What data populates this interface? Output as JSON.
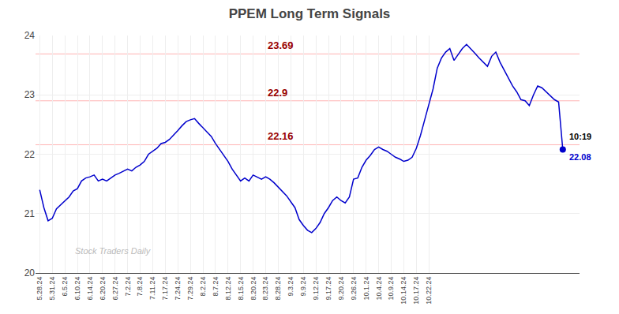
{
  "chart_data": {
    "type": "line",
    "title": "PPEM Long Term Signals",
    "color": "#0000cc",
    "grid": true,
    "ylim": [
      20,
      24
    ],
    "yticks": [
      20,
      21,
      22,
      23,
      24
    ],
    "hlines": [
      {
        "y": 23.69,
        "label": "23.69",
        "color": "#990000"
      },
      {
        "y": 22.9,
        "label": "22.9",
        "color": "#990000"
      },
      {
        "y": 22.16,
        "label": "22.16",
        "color": "#990000"
      }
    ],
    "annotations": [
      "10:19",
      "22.08"
    ],
    "watermark": {
      "text": "Stock Traders Daily",
      "color": "#bbbbbb"
    },
    "categories": [
      "5.28.24",
      null,
      null,
      "5.31.24",
      null,
      null,
      "6.5.24",
      null,
      null,
      "6.10.24",
      null,
      null,
      "6.14.24",
      null,
      null,
      "6.20.24",
      null,
      null,
      "6.27.24",
      null,
      null,
      "7.2.24",
      null,
      null,
      "7.8.24",
      null,
      null,
      "7.11.24",
      null,
      null,
      "7.17.24",
      null,
      null,
      "7.24.24",
      null,
      null,
      "7.29.24",
      null,
      null,
      "8.2.24",
      null,
      null,
      "8.7.24",
      null,
      null,
      "8.12.24",
      null,
      null,
      "8.15.24",
      null,
      null,
      "8.20.24",
      null,
      null,
      "8.23.24",
      null,
      null,
      "8.28.24",
      null,
      null,
      "9.3.24",
      null,
      null,
      "9.9.24",
      null,
      null,
      "9.12.24",
      null,
      null,
      "9.17.24",
      null,
      null,
      "9.20.24",
      null,
      null,
      "9.26.24",
      null,
      null,
      "10.1.24",
      null,
      null,
      "10.4.24",
      null,
      null,
      "10.9.24",
      null,
      null,
      "10.14.24",
      null,
      null,
      "10.17.24",
      null,
      null,
      "10.22.24",
      null,
      null,
      null,
      null,
      null,
      null,
      null,
      null,
      null,
      null,
      null,
      null,
      null,
      null,
      null,
      null,
      null,
      null,
      null,
      null,
      null,
      null,
      null,
      null,
      null,
      null,
      null,
      null,
      null,
      null,
      null,
      null
    ],
    "values": [
      21.4,
      21.1,
      20.88,
      20.92,
      21.08,
      21.15,
      21.22,
      21.28,
      21.38,
      21.42,
      21.55,
      21.6,
      21.62,
      21.65,
      21.55,
      21.58,
      21.55,
      21.6,
      21.65,
      21.68,
      21.72,
      21.75,
      21.72,
      21.78,
      21.82,
      21.88,
      22.0,
      22.05,
      22.1,
      22.18,
      22.2,
      22.25,
      22.32,
      22.4,
      22.48,
      22.55,
      22.58,
      22.6,
      22.52,
      22.45,
      22.38,
      22.3,
      22.18,
      22.08,
      21.98,
      21.88,
      21.75,
      21.65,
      21.55,
      21.6,
      21.55,
      21.65,
      21.62,
      21.58,
      21.62,
      21.58,
      21.52,
      21.45,
      21.38,
      21.3,
      21.2,
      21.1,
      20.9,
      20.8,
      20.72,
      20.68,
      20.75,
      20.85,
      21.0,
      21.1,
      21.22,
      21.28,
      21.22,
      21.18,
      21.28,
      21.58,
      21.6,
      21.78,
      21.9,
      21.98,
      22.08,
      22.12,
      22.08,
      22.05,
      22.0,
      21.95,
      21.92,
      21.88,
      21.9,
      21.95,
      22.1,
      22.32,
      22.58,
      22.85,
      23.1,
      23.45,
      23.62,
      23.72,
      23.78,
      23.58,
      23.68,
      23.78,
      23.85,
      23.78,
      23.7,
      23.62,
      23.55,
      23.48,
      23.65,
      23.72,
      23.55,
      23.42,
      23.3,
      23.15,
      23.05,
      22.92,
      22.9,
      22.82,
      23.0,
      23.15,
      23.12,
      23.05,
      22.98,
      22.92,
      22.88,
      22.08
    ]
  }
}
